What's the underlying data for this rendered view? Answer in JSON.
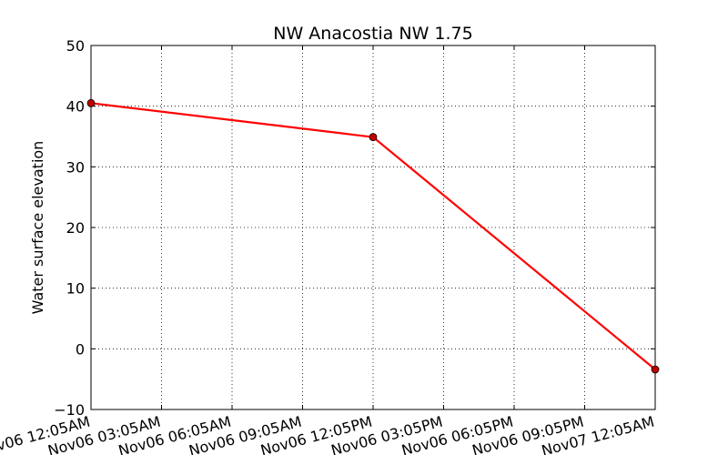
{
  "chart_data": {
    "type": "line",
    "title": "NW Anacostia NW 1.75",
    "xlabel": "",
    "ylabel": "Water surface elevation",
    "ylim": [
      -10,
      50
    ],
    "yticks": [
      "50",
      "40",
      "30",
      "20",
      "10",
      "0",
      "−10"
    ],
    "xticks": [
      "Nov06 12:05AM",
      "Nov06 03:05AM",
      "Nov06 06:05AM",
      "Nov06 09:05AM",
      "Nov06 12:05PM",
      "Nov06 03:05PM",
      "Nov06 06:05PM",
      "Nov06 09:05PM",
      "Nov07 12:05AM"
    ],
    "grid": true,
    "series": [
      {
        "color": "#ff0000",
        "marker_color": "#bf0000",
        "x": [
          "Nov06 12:05AM",
          "Nov06 12:05PM",
          "Nov07 12:05AM"
        ],
        "values": [
          40.5,
          34.9,
          -3.4
        ]
      }
    ]
  }
}
